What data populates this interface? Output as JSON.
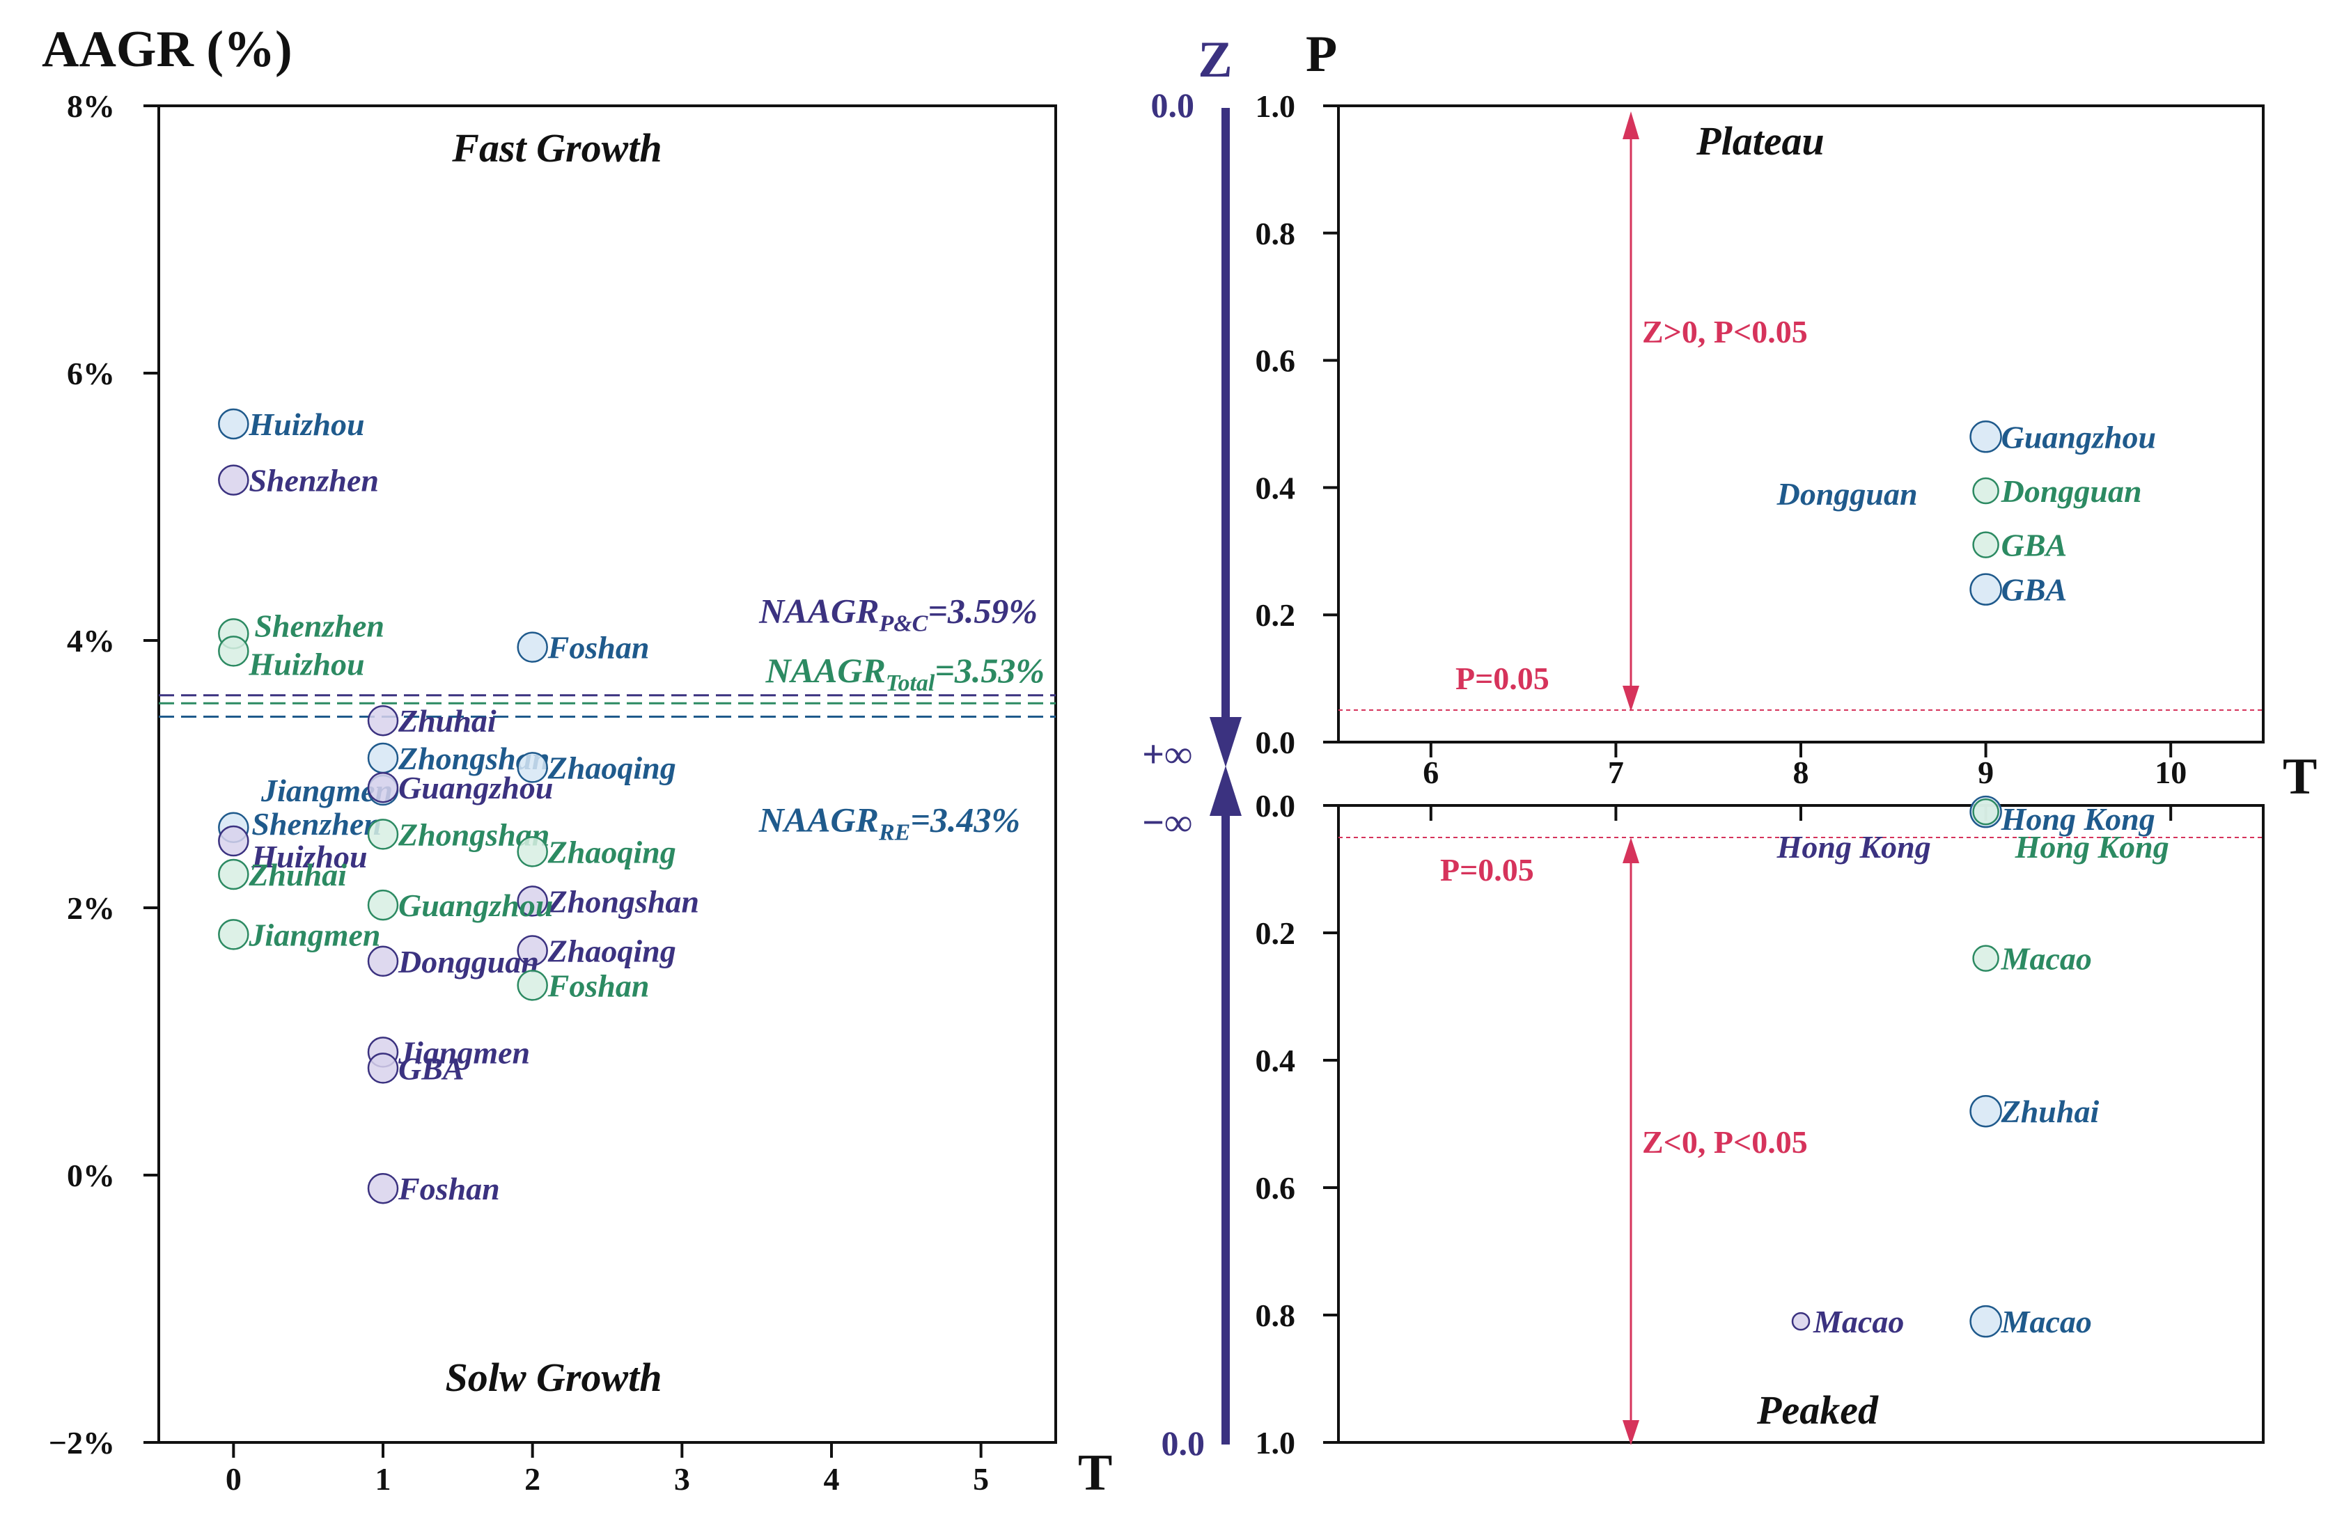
{
  "colors": {
    "pc": "#3b3280",
    "re": "#1f5a8c",
    "total": "#2c8a62",
    "sig": "#d6335b",
    "axis": "#111111",
    "pc_fill": "#d8d2ec",
    "re_fill": "#d6e6f4",
    "total_fill": "#d7efe3"
  },
  "left_panel": {
    "ylabel": "AAGR (%)",
    "xlabel": "T",
    "top_zone": "Fast Growth",
    "bottom_zone": "Solw Growth",
    "y_ticks": [
      {
        "value": 8,
        "label": "8%"
      },
      {
        "value": 6,
        "label": "6%"
      },
      {
        "value": 4,
        "label": "4%"
      },
      {
        "value": 2,
        "label": "2%"
      },
      {
        "value": 0,
        "label": "0%"
      },
      {
        "value": -2,
        "label": "−2%"
      }
    ],
    "x_ticks": [
      {
        "value": 0,
        "label": "0"
      },
      {
        "value": 1,
        "label": "1"
      },
      {
        "value": 2,
        "label": "2"
      },
      {
        "value": 3,
        "label": "3"
      },
      {
        "value": 4,
        "label": "4"
      },
      {
        "value": 5,
        "label": "5"
      }
    ],
    "ref_lines": [
      {
        "series": "pc",
        "value": 3.59,
        "main": "NAAGR",
        "sub": "P&C",
        "tail": "=3.59%"
      },
      {
        "series": "total",
        "value": 3.53,
        "main": "NAAGR",
        "sub": "Total",
        "tail": "=3.53%"
      },
      {
        "series": "re",
        "value": 3.43,
        "main": "NAAGR",
        "sub": "RE",
        "tail": "=3.43%"
      }
    ]
  },
  "middle_axis": {
    "label": "Z",
    "top": "0.0",
    "bottom": "0.0",
    "plus_inf": "+∞",
    "minus_inf": "−∞"
  },
  "right_panel": {
    "ylabel": "P",
    "xlabel": "T",
    "x_ticks": [
      {
        "value": 6,
        "label": "6"
      },
      {
        "value": 7,
        "label": "7"
      },
      {
        "value": 8,
        "label": "8"
      },
      {
        "value": 9,
        "label": "9"
      },
      {
        "value": 10,
        "label": "10"
      }
    ],
    "top": {
      "zone": "Plateau",
      "sig_text": "Z>0, P<0.05",
      "p_line_label": "P=0.05",
      "y_ticks": [
        {
          "value": 1.0,
          "label": "1.0"
        },
        {
          "value": 0.8,
          "label": "0.8"
        },
        {
          "value": 0.6,
          "label": "0.6"
        },
        {
          "value": 0.4,
          "label": "0.4"
        },
        {
          "value": 0.2,
          "label": "0.2"
        },
        {
          "value": 0.0,
          "label": "0.0"
        }
      ]
    },
    "bottom": {
      "zone": "Peaked",
      "sig_text": "Z<0, P<0.05",
      "p_line_label": "P=0.05",
      "y_ticks": [
        {
          "value": 0.0,
          "label": "0.0"
        },
        {
          "value": 0.2,
          "label": "0.2"
        },
        {
          "value": 0.4,
          "label": "0.4"
        },
        {
          "value": 0.6,
          "label": "0.6"
        },
        {
          "value": 0.8,
          "label": "0.8"
        },
        {
          "value": 1.0,
          "label": "1.0"
        }
      ]
    }
  },
  "chart_data": [
    {
      "type": "scatter",
      "title": "",
      "xlabel": "T",
      "ylabel": "AAGR (%)",
      "xlim": [
        -0.5,
        5.5
      ],
      "ylim": [
        -2,
        8
      ],
      "reference_lines": [
        {
          "name": "NAAGR P&C",
          "y": 3.59
        },
        {
          "name": "NAAGR Total",
          "y": 3.53
        },
        {
          "name": "NAAGR RE",
          "y": 3.43
        }
      ],
      "series": [
        {
          "name": "RE",
          "color_key": "re",
          "points": [
            {
              "label": "Huizhou",
              "x": 0,
              "y": 5.62
            },
            {
              "label": "Foshan",
              "x": 2,
              "y": 3.95
            },
            {
              "label": "Zhongshan",
              "x": 1,
              "y": 3.12
            },
            {
              "label": "Zhaoqing",
              "x": 2,
              "y": 3.05
            },
            {
              "label": "Jiangmen",
              "x": 1,
              "y": 2.88
            },
            {
              "label": "Shenzhen",
              "x": 0,
              "y": 2.6
            }
          ]
        },
        {
          "name": "P&C",
          "color_key": "pc",
          "points": [
            {
              "label": "Shenzhen",
              "x": 0,
              "y": 5.2
            },
            {
              "label": "Zhuhai",
              "x": 1,
              "y": 3.4
            },
            {
              "label": "Guangzhou",
              "x": 1,
              "y": 2.9
            },
            {
              "label": "Huizhou",
              "x": 0,
              "y": 2.5
            },
            {
              "label": "Zhongshan",
              "x": 2,
              "y": 2.05
            },
            {
              "label": "Zhaoqing",
              "x": 2,
              "y": 1.68
            },
            {
              "label": "Dongguan",
              "x": 1,
              "y": 1.6
            },
            {
              "label": "Jiangmen",
              "x": 1,
              "y": 0.92
            },
            {
              "label": "GBA",
              "x": 1,
              "y": 0.8
            },
            {
              "label": "Foshan",
              "x": 1,
              "y": -0.1
            }
          ]
        },
        {
          "name": "Total",
          "color_key": "total",
          "points": [
            {
              "label": "Shenzhen",
              "x": 0,
              "y": 4.05
            },
            {
              "label": "Huizhou",
              "x": 0,
              "y": 3.92
            },
            {
              "label": "Zhongshan",
              "x": 1,
              "y": 2.55
            },
            {
              "label": "Zhaoqing",
              "x": 2,
              "y": 2.42
            },
            {
              "label": "Zhuhai",
              "x": 0,
              "y": 2.25
            },
            {
              "label": "Guangzhou",
              "x": 1,
              "y": 2.02
            },
            {
              "label": "Jiangmen",
              "x": 0,
              "y": 1.8
            },
            {
              "label": "Foshan",
              "x": 2,
              "y": 1.42
            }
          ]
        }
      ]
    },
    {
      "type": "scatter",
      "title": "Plateau",
      "xlabel": "T",
      "ylabel": "P",
      "xlim": [
        5.5,
        10.5
      ],
      "ylim": [
        0,
        1
      ],
      "significance_line": 0.05,
      "series": [
        {
          "name": "RE",
          "color_key": "re",
          "points": [
            {
              "label": "Guangzhou",
              "x": 9,
              "y": 0.48
            },
            {
              "label": "GBA",
              "x": 9,
              "y": 0.24
            },
            {
              "label": "Dongguan",
              "x": 9,
              "y": 0.395
            }
          ]
        },
        {
          "name": "Total",
          "color_key": "total",
          "points": [
            {
              "label": "Dongguan",
              "x": 9,
              "y": 0.395
            },
            {
              "label": "GBA",
              "x": 9,
              "y": 0.31
            }
          ]
        }
      ]
    },
    {
      "type": "scatter",
      "title": "Peaked",
      "xlabel": "T",
      "ylabel": "P",
      "xlim": [
        5.5,
        10.5
      ],
      "ylim": [
        0,
        1
      ],
      "y_inverted": true,
      "significance_line": 0.05,
      "series": [
        {
          "name": "RE",
          "color_key": "re",
          "points": [
            {
              "label": "Hong Kong",
              "x": 9,
              "y": 0.01
            },
            {
              "label": "Zhuhai",
              "x": 9,
              "y": 0.48
            },
            {
              "label": "Macao",
              "x": 9,
              "y": 0.81
            }
          ]
        },
        {
          "name": "P&C",
          "color_key": "pc",
          "points": [
            {
              "label": "Hong Kong",
              "x": 9,
              "y": 0.01
            },
            {
              "label": "Macao",
              "x": 8,
              "y": 0.81
            }
          ]
        },
        {
          "name": "Total",
          "color_key": "total",
          "points": [
            {
              "label": "Hong Kong",
              "x": 9,
              "y": 0.01
            },
            {
              "label": "Macao",
              "x": 9,
              "y": 0.24
            }
          ]
        }
      ]
    }
  ]
}
